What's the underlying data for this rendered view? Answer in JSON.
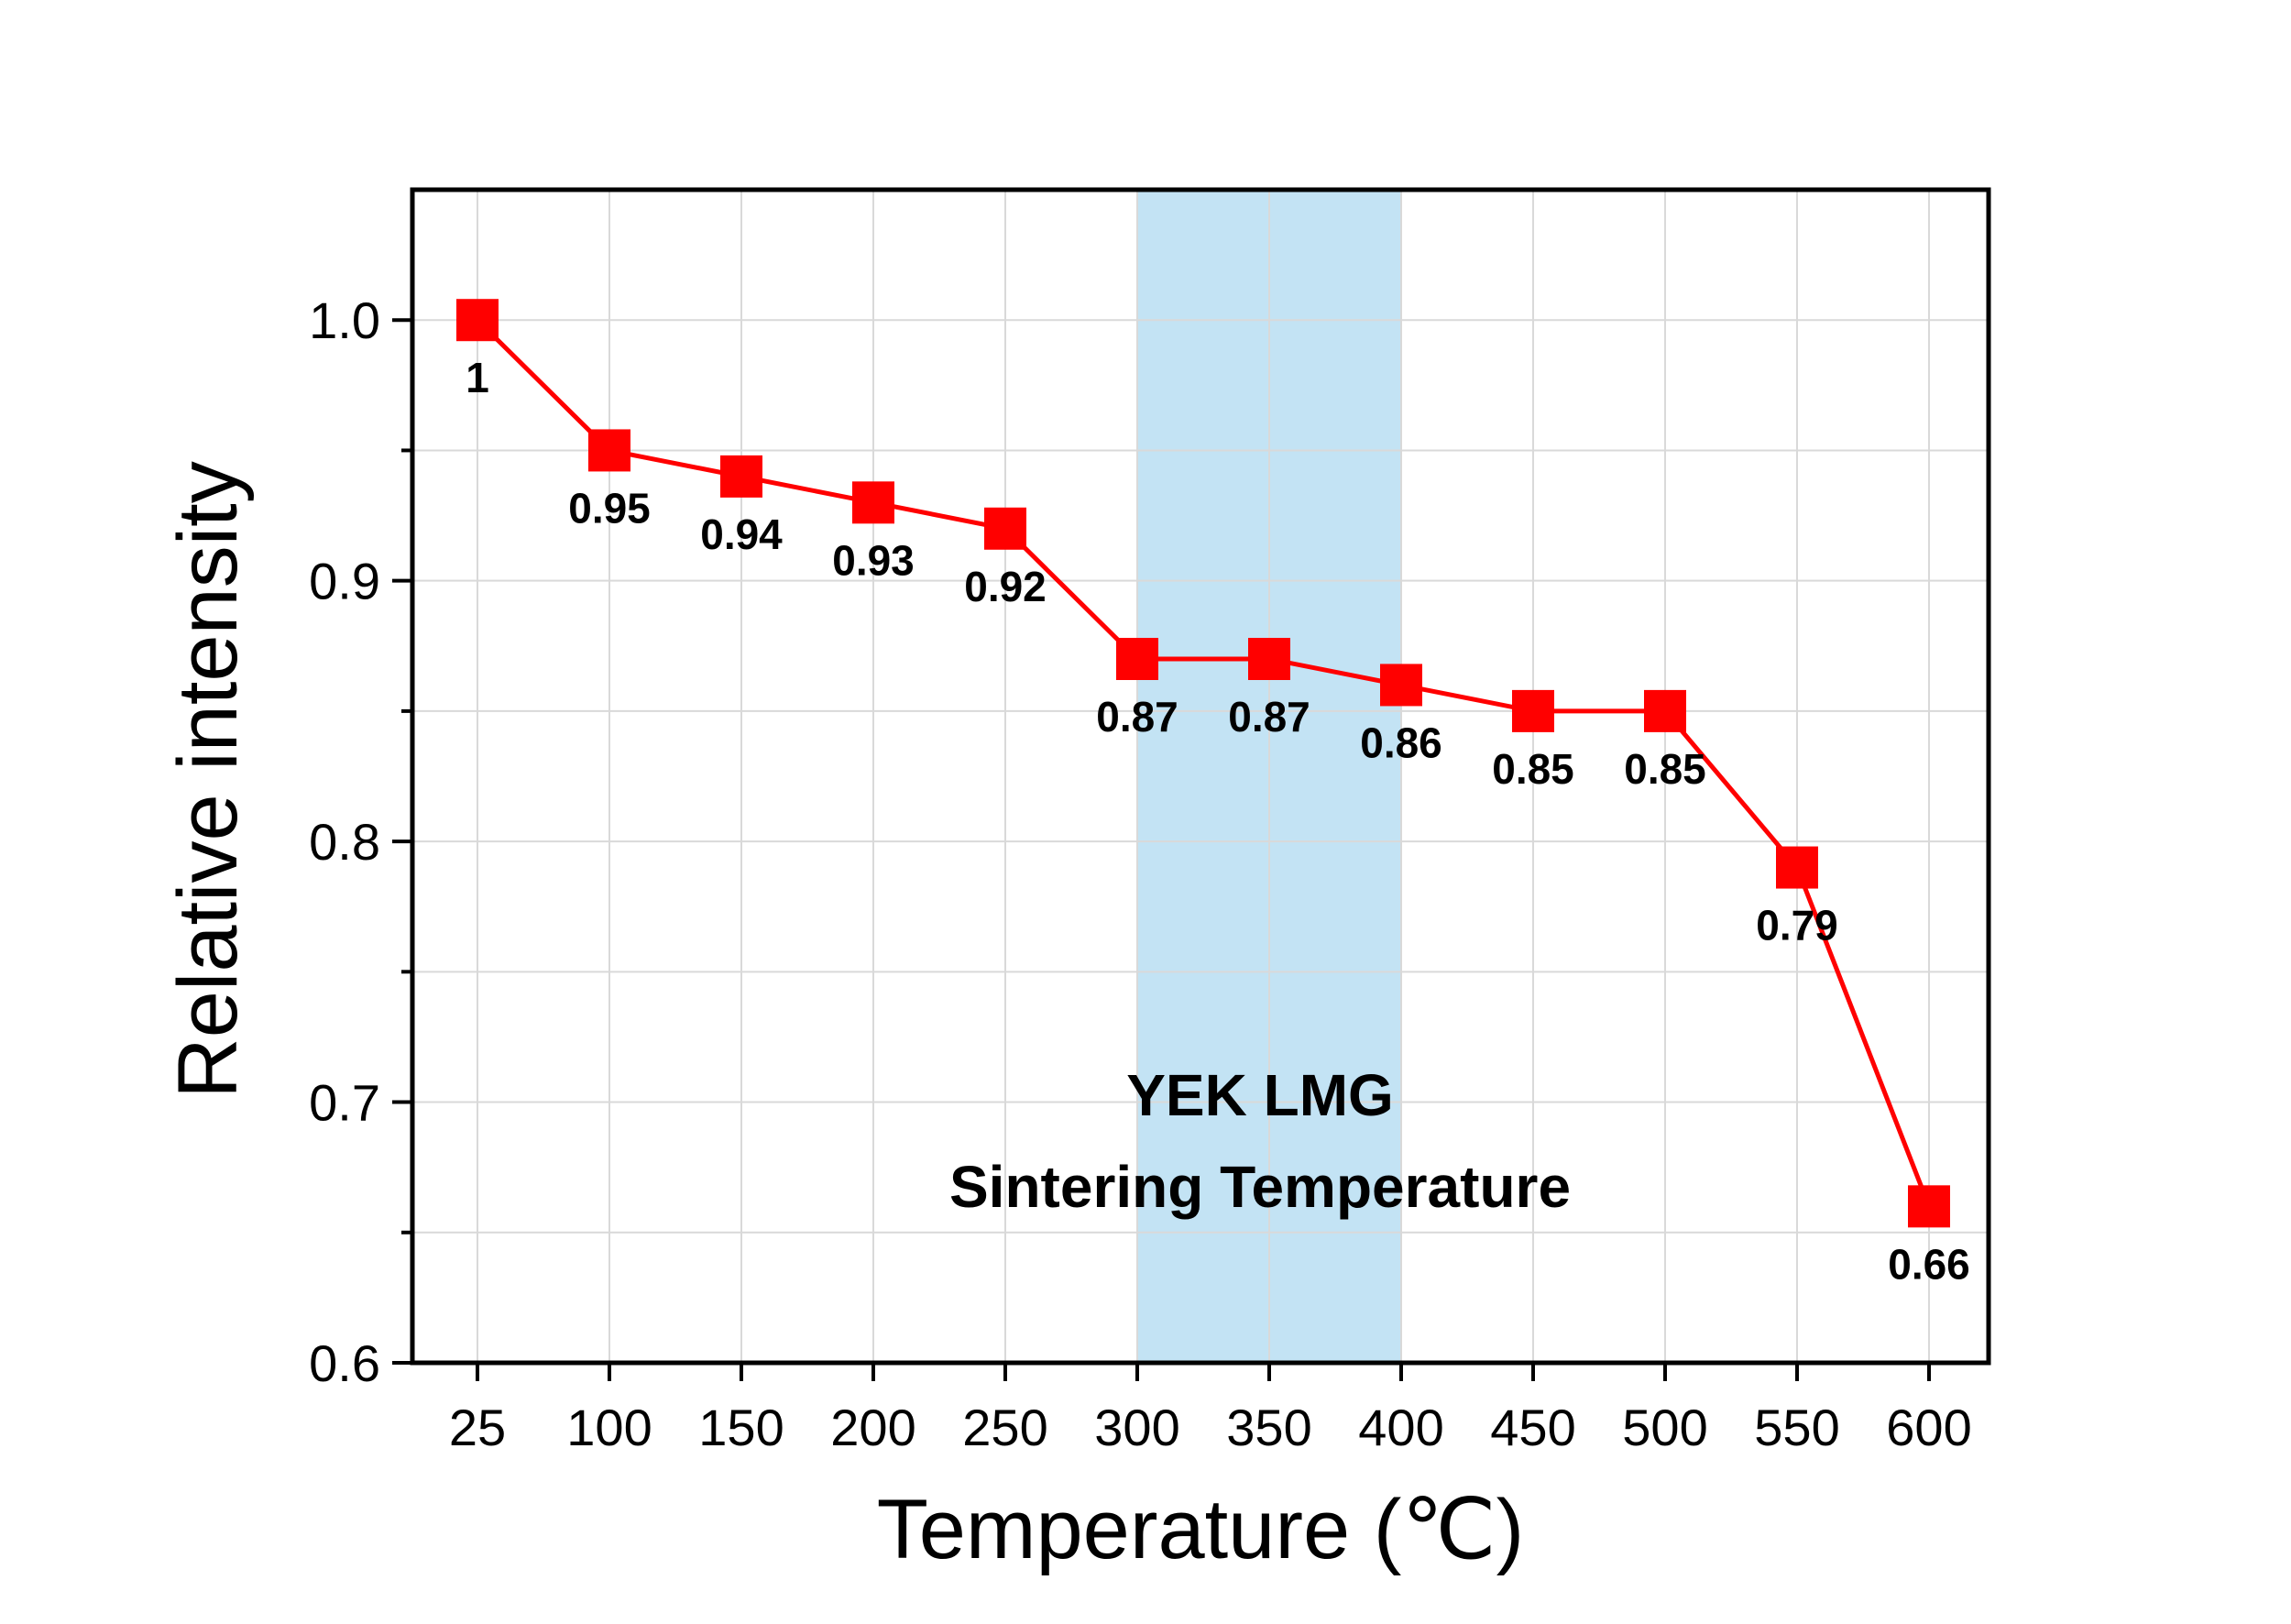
{
  "chart_data": {
    "type": "line",
    "title": "",
    "xlabel": "Temperature (℃)",
    "ylabel": "Relative intensity",
    "categories": [
      "25",
      "100",
      "150",
      "200",
      "250",
      "300",
      "350",
      "400",
      "450",
      "500",
      "550",
      "600"
    ],
    "series": [
      {
        "values": [
          1.0,
          0.95,
          0.94,
          0.93,
          0.92,
          0.87,
          0.87,
          0.86,
          0.85,
          0.85,
          0.79,
          0.66
        ],
        "labels": [
          "1",
          "0.95",
          "0.94",
          "0.93",
          "0.92",
          "0.87",
          "0.87",
          "0.86",
          "0.85",
          "0.85",
          "0.79",
          "0.66"
        ],
        "color": "#ff0000",
        "marker": "square"
      }
    ],
    "ylim": [
      0.6,
      1.05
    ],
    "yticks": [
      0.6,
      0.7,
      0.8,
      0.9,
      1.0
    ],
    "ytick_labels": [
      "0.6",
      "0.7",
      "0.8",
      "0.9",
      "1.0"
    ],
    "grid": true,
    "legend": "none",
    "highlight": {
      "x_from": "300",
      "x_to": "400",
      "color": "#c3e3f4"
    },
    "annotations": [
      "YEK LMG",
      "Sintering Temperature"
    ]
  }
}
